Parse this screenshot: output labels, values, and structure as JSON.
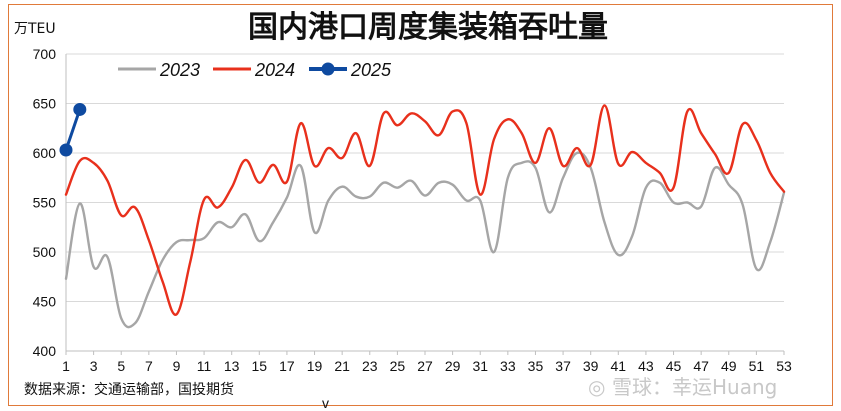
{
  "chart_data": {
    "type": "line",
    "title": "国内港口周度集装箱吞吐量",
    "unit_label": "万TEU",
    "xlabel": "",
    "ylim": [
      400,
      700
    ],
    "yticks": [
      400,
      450,
      500,
      550,
      600,
      650,
      700
    ],
    "xlim": [
      1,
      53
    ],
    "xticks": [
      1,
      3,
      5,
      7,
      9,
      11,
      13,
      15,
      17,
      19,
      21,
      23,
      25,
      27,
      29,
      31,
      33,
      35,
      37,
      39,
      41,
      43,
      45,
      47,
      49,
      51,
      53
    ],
    "grid": "horizontal",
    "legend_position": "top",
    "series": [
      {
        "name": "2023",
        "color": "#a6a6a6",
        "x": [
          1,
          2,
          3,
          4,
          5,
          6,
          7,
          8,
          9,
          10,
          11,
          12,
          13,
          14,
          15,
          16,
          17,
          18,
          19,
          20,
          21,
          22,
          23,
          24,
          25,
          26,
          27,
          28,
          29,
          30,
          31,
          32,
          33,
          34,
          35,
          36,
          37,
          38,
          39,
          40,
          41,
          42,
          43,
          44,
          45,
          46,
          47,
          48,
          49,
          50,
          51,
          52,
          53
        ],
        "values": [
          473,
          549,
          485,
          495,
          433,
          428,
          460,
          492,
          510,
          512,
          514,
          530,
          525,
          538,
          511,
          530,
          555,
          587,
          520,
          552,
          566,
          556,
          556,
          570,
          565,
          572,
          557,
          570,
          568,
          552,
          552,
          500,
          575,
          590,
          585,
          540,
          575,
          600,
          585,
          530,
          497,
          516,
          565,
          570,
          550,
          550,
          546,
          585,
          568,
          548,
          483,
          510,
          560
        ]
      },
      {
        "name": "2024",
        "color": "#e8301c",
        "x": [
          1,
          2,
          3,
          4,
          5,
          6,
          7,
          8,
          9,
          10,
          11,
          12,
          13,
          14,
          15,
          16,
          17,
          18,
          19,
          20,
          21,
          22,
          23,
          24,
          25,
          26,
          27,
          28,
          29,
          30,
          31,
          32,
          33,
          34,
          35,
          36,
          37,
          38,
          39,
          40,
          41,
          42,
          43,
          44,
          45,
          46,
          47,
          48,
          49,
          50,
          51,
          52,
          53
        ],
        "values": [
          558,
          592,
          590,
          572,
          537,
          545,
          512,
          470,
          437,
          490,
          553,
          545,
          565,
          593,
          570,
          588,
          571,
          630,
          587,
          605,
          595,
          620,
          587,
          640,
          628,
          640,
          632,
          618,
          642,
          630,
          558,
          614,
          634,
          620,
          590,
          625,
          587,
          605,
          588,
          648,
          589,
          601,
          590,
          580,
          565,
          642,
          620,
          599,
          580,
          629,
          613,
          580,
          561
        ]
      },
      {
        "name": "2025",
        "color": "#0e4aa0",
        "x": [
          1,
          2
        ],
        "values": [
          603,
          644
        ]
      }
    ],
    "source_note": "数据来源：交通运输部，国投期货",
    "axis_fragment": "v"
  },
  "watermark": "雪球：幸运Huang"
}
